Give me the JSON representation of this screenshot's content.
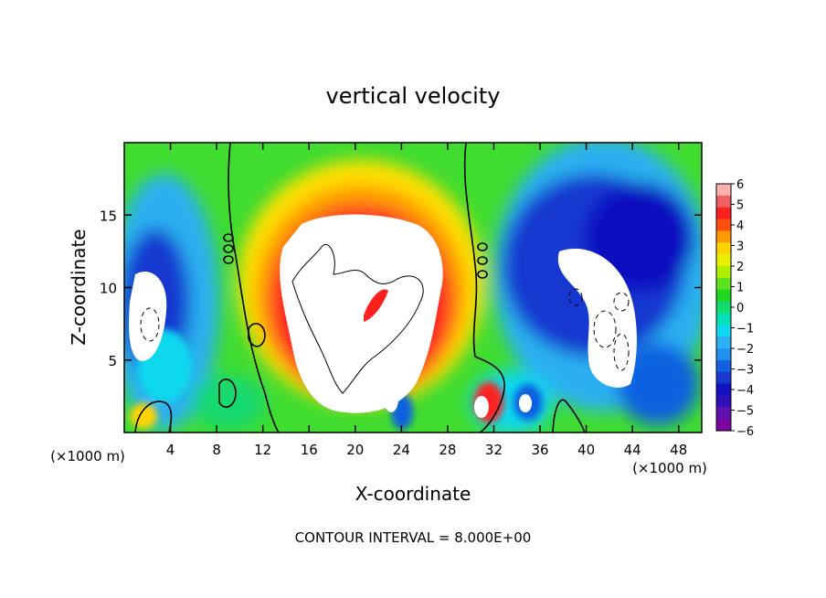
{
  "chart_data": {
    "type": "heatmap",
    "title": "vertical velocity",
    "xlabel": "X-coordinate",
    "ylabel": "Z-coordinate",
    "x_unit_left": "(×1000 m)",
    "x_unit_right": "(×1000 m)",
    "xlim": [
      0,
      50
    ],
    "ylim": [
      0,
      20
    ],
    "x_ticks": [
      "4",
      "8",
      "12",
      "16",
      "20",
      "24",
      "28",
      "32",
      "36",
      "40",
      "44",
      "48"
    ],
    "y_ticks": [
      "5",
      "10",
      "15"
    ],
    "colorbar": {
      "ticks": [
        "6",
        "5",
        "4",
        "3",
        "2",
        "1",
        "0",
        "−1",
        "−2",
        "−3",
        "−4",
        "−5",
        "−6"
      ],
      "colors": [
        "#ffb0b0",
        "#f06060",
        "#ff2020",
        "#ff5010",
        "#ff9a00",
        "#ffd400",
        "#e8f000",
        "#aef000",
        "#60e020",
        "#20d820",
        "#14d870",
        "#00e0b0",
        "#10d8ee",
        "#2cb0f0",
        "#2090f0",
        "#1060e0",
        "#1838d0",
        "#1010c0",
        "#3010b8",
        "#6010b0",
        "#7a08a0"
      ]
    },
    "footer": "CONTOUR INTERVAL = 8.000E+00"
  }
}
